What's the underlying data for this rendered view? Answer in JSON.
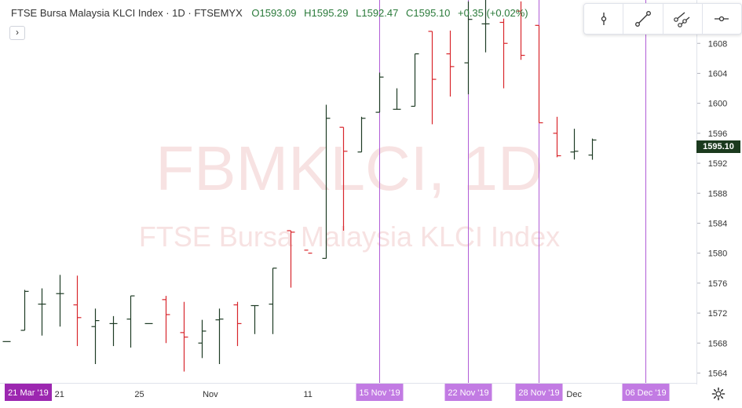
{
  "header": {
    "title": "FTSE Bursa Malaysia KLCI Index · 1D · FTSEMYX",
    "open": "O1593.09",
    "high": "H1595.29",
    "low": "L1592.47",
    "close": "C1595.10",
    "change": "+0.35 (+0.02%)",
    "expand_symbol": "›"
  },
  "toolbar": {
    "tools": [
      {
        "icon": "vertical-line-icon"
      },
      {
        "icon": "trend-line-icon"
      },
      {
        "icon": "parallel-channel-icon"
      },
      {
        "icon": "horizontal-ray-icon"
      }
    ]
  },
  "watermark": {
    "symbol": "FBMKLCI, 1D",
    "description": "FTSE Bursa Malaysia KLCI Index"
  },
  "colors": {
    "up": "#1e3b24",
    "down": "#d8262c",
    "vertical_line": "#b15cd6",
    "date_label_bg": "#c27be3",
    "first_date_bg": "#9c27b0",
    "price_label_bg": "#1b3a1e",
    "axis_text": "#333333",
    "watermark": "#f7e2e2"
  },
  "chart_data": {
    "type": "ohlc",
    "title": "FTSE Bursa Malaysia KLCI Index",
    "interval": "1D",
    "ylim": [
      1563,
      1615
    ],
    "y_ticks": [
      1564,
      1568,
      1572,
      1576,
      1580,
      1584,
      1588,
      1592,
      1596,
      1600,
      1604,
      1608
    ],
    "last_price": "1595.10",
    "x_axis": {
      "first_date_label": "21 Mar '19",
      "tick_labels": [
        {
          "label": "21",
          "bar": 3
        },
        {
          "label": "25",
          "bar": 7.5
        },
        {
          "label": "Nov",
          "bar": 11.5
        },
        {
          "label": "11",
          "bar": 17
        },
        {
          "label": "Dec",
          "bar": 32
        }
      ]
    },
    "vertical_lines": [
      {
        "label": "15 Nov '19",
        "bar": 21
      },
      {
        "label": "22 Nov '19",
        "bar": 26
      },
      {
        "label": "28 Nov '19",
        "bar": 30
      },
      {
        "label": "06 Dec '19",
        "bar": 36
      }
    ],
    "bars": [
      {
        "o": 1568.2,
        "h": 1568.2,
        "l": 1568.2,
        "c": 1568.2
      },
      {
        "o": 1569.7,
        "h": 1575.1,
        "l": 1569.7,
        "c": 1574.9
      },
      {
        "o": 1573.2,
        "h": 1575.3,
        "l": 1569.0,
        "c": 1573.2
      },
      {
        "o": 1574.6,
        "h": 1577.1,
        "l": 1570.2,
        "c": 1574.6
      },
      {
        "o": 1573.1,
        "h": 1577.0,
        "l": 1567.6,
        "c": 1571.4
      },
      {
        "o": 1570.2,
        "h": 1572.6,
        "l": 1565.2,
        "c": 1571.0
      },
      {
        "o": 1570.6,
        "h": 1571.6,
        "l": 1567.6,
        "c": 1570.6
      },
      {
        "o": 1571.2,
        "h": 1574.3,
        "l": 1567.4,
        "c": 1574.3
      },
      {
        "o": 1570.6,
        "h": 1570.6,
        "l": 1570.6,
        "c": 1570.6
      },
      {
        "o": 1573.8,
        "h": 1574.3,
        "l": 1568.0,
        "c": 1571.8
      },
      {
        "o": 1569.4,
        "h": 1573.5,
        "l": 1564.2,
        "c": 1568.8
      },
      {
        "o": 1568.0,
        "h": 1571.1,
        "l": 1566.0,
        "c": 1569.6
      },
      {
        "o": 1571.1,
        "h": 1572.6,
        "l": 1565.2,
        "c": 1571.2
      },
      {
        "o": 1573.1,
        "h": 1573.5,
        "l": 1567.6,
        "c": 1570.6
      },
      {
        "o": 1573.0,
        "h": 1573.0,
        "l": 1569.2,
        "c": 1573.0
      },
      {
        "o": 1573.2,
        "h": 1578.0,
        "l": 1569.2,
        "c": 1578.0
      },
      {
        "o": 1583.0,
        "h": 1583.0,
        "l": 1575.4,
        "c": 1582.8
      },
      {
        "o": 1580.4,
        "h": 1580.4,
        "l": 1580.4,
        "c": 1580.0
      },
      {
        "o": 1579.3,
        "h": 1599.8,
        "l": 1579.3,
        "c": 1598.0
      },
      {
        "o": 1596.8,
        "h": 1596.8,
        "l": 1583.0,
        "c": 1593.6
      },
      {
        "o": 1593.5,
        "h": 1598.2,
        "l": 1593.5,
        "c": 1598.0
      },
      {
        "o": 1598.8,
        "h": 1604.1,
        "l": 1598.8,
        "c": 1603.5
      },
      {
        "o": 1599.2,
        "h": 1602.0,
        "l": 1599.2,
        "c": 1599.2
      },
      {
        "o": 1599.6,
        "h": 1606.6,
        "l": 1599.6,
        "c": 1606.6
      },
      {
        "o": 1609.6,
        "h": 1609.6,
        "l": 1597.2,
        "c": 1603.2
      },
      {
        "o": 1606.6,
        "h": 1609.7,
        "l": 1600.9,
        "c": 1604.9
      },
      {
        "o": 1605.4,
        "h": 1613.6,
        "l": 1601.2,
        "c": 1611.2
      },
      {
        "o": 1610.6,
        "h": 1614.0,
        "l": 1606.8,
        "c": 1610.6
      },
      {
        "o": 1610.8,
        "h": 1611.3,
        "l": 1602.0,
        "c": 1608.0
      },
      {
        "o": 1612.3,
        "h": 1613.6,
        "l": 1605.8,
        "c": 1606.4
      },
      {
        "o": 1610.4,
        "h": 1610.4,
        "l": 1597.4,
        "c": 1597.4
      },
      {
        "o": 1596.0,
        "h": 1598.2,
        "l": 1592.8,
        "c": 1593.0
      },
      {
        "o": 1593.5,
        "h": 1596.6,
        "l": 1592.5,
        "c": 1593.6
      },
      {
        "o": 1593.09,
        "h": 1595.29,
        "l": 1592.47,
        "c": 1595.1
      }
    ]
  }
}
